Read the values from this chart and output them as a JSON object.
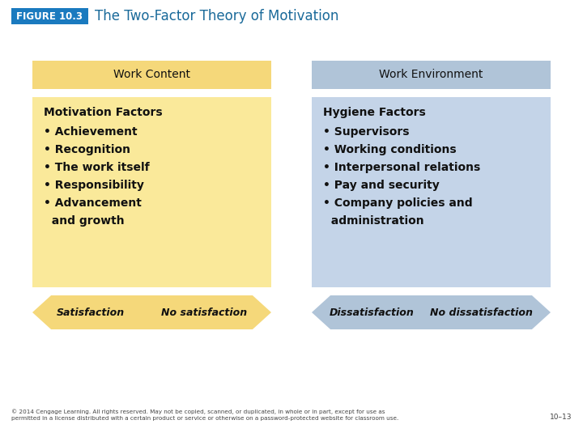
{
  "title": "The Two-Factor Theory of Motivation",
  "figure_label": "FIGURE 10.3",
  "figure_label_bg": "#1a7abf",
  "figure_label_color": "#ffffff",
  "title_color": "#1a6a9a",
  "bg_color": "#ffffff",
  "left_header": "Work Content",
  "left_header_bg": "#f5d87a",
  "left_body_bg": "#fae99a",
  "left_title": "Motivation Factors",
  "left_bullets": [
    "Achievement",
    "Recognition",
    "The work itself",
    "Responsibility",
    "Advancement",
    "and growth"
  ],
  "left_arrow_left": "Satisfaction",
  "left_arrow_right": "No satisfaction",
  "left_arrow_bg": "#f5d87a",
  "right_header": "Work Environment",
  "right_header_bg": "#b0c4d8",
  "right_body_bg": "#c4d4e8",
  "right_title": "Hygiene Factors",
  "right_bullets": [
    "Supervisors",
    "Working conditions",
    "Interpersonal relations",
    "Pay and security",
    "Company policies and",
    "administration"
  ],
  "right_arrow_left": "Dissatisfaction",
  "right_arrow_right": "No dissatisfaction",
  "right_arrow_bg": "#b0c4d8",
  "footer": "© 2014 Cengage Learning. All rights reserved. May not be copied, scanned, or duplicated, in whole or in part, except for use as\npermitted in a license distributed with a certain product or service or otherwise on a password-protected website for classroom use.",
  "footer_right": "10–13"
}
